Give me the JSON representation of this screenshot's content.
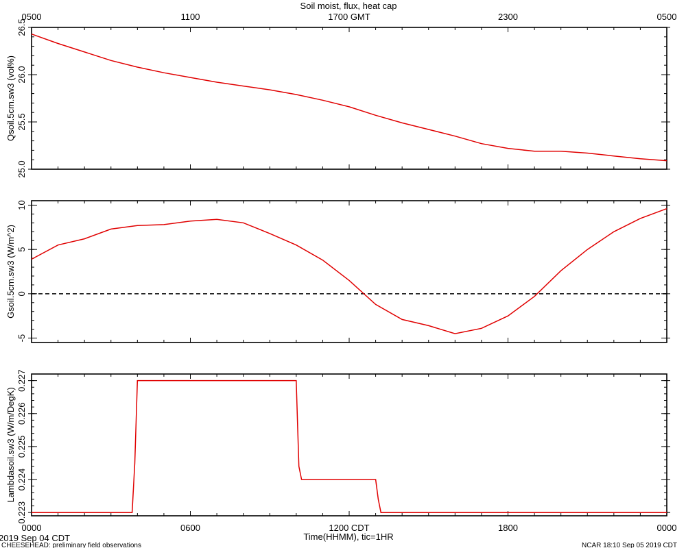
{
  "title": "Soil moist, flux, heat cap",
  "footer": {
    "left_date": "2019 Sep 04 CDT",
    "left_note": "CHEESEHEAD: preliminary field observations",
    "right_note": "NCAR 18:10 Sep 05 2019 CDT",
    "x_axis_title": "Time(HHMM), tic=1HR"
  },
  "chart_data": [
    {
      "type": "line",
      "ylabel": "Qsoil.5cm.sw3 (vol%)",
      "ylim": [
        25.0,
        26.5
      ],
      "yticks": [
        25.0,
        25.5,
        26.0,
        26.5
      ],
      "ytick_labels": [
        "25.0",
        "25.5",
        "26.0",
        "26.5"
      ],
      "top_axis_labels": [
        {
          "hour": 0,
          "label": "0500"
        },
        {
          "hour": 6,
          "label": "1100"
        },
        {
          "hour": 12,
          "label": "1700 GMT"
        },
        {
          "hour": 18,
          "label": "2300"
        },
        {
          "hour": 24,
          "label": "0500"
        }
      ],
      "xlim_hours": [
        0,
        24
      ],
      "line_color": "#e00000",
      "x": [
        0,
        1,
        2,
        3,
        4,
        5,
        6,
        7,
        8,
        9,
        10,
        11,
        12,
        13,
        14,
        15,
        16,
        17,
        18,
        19,
        20,
        21,
        22,
        23,
        24
      ],
      "y": [
        26.43,
        26.33,
        26.24,
        26.15,
        26.08,
        26.02,
        25.97,
        25.92,
        25.88,
        25.84,
        25.79,
        25.73,
        25.66,
        25.57,
        25.49,
        25.42,
        25.35,
        25.27,
        25.22,
        25.19,
        25.19,
        25.17,
        25.14,
        25.11,
        25.09
      ]
    },
    {
      "type": "line",
      "ylabel": "Gsoil.5cm.sw3 (W/m^2)",
      "ylim": [
        -5.5,
        10.5
      ],
      "yticks": [
        -5,
        0,
        5,
        10
      ],
      "ytick_labels": [
        "-5",
        "0",
        "5",
        "10"
      ],
      "zero_line": true,
      "xlim_hours": [
        0,
        24
      ],
      "line_color": "#e00000",
      "x": [
        0,
        1,
        2,
        3,
        4,
        5,
        6,
        7,
        8,
        9,
        10,
        11,
        12,
        13,
        14,
        15,
        16,
        17,
        18,
        19,
        20,
        21,
        22,
        23,
        24
      ],
      "y": [
        3.9,
        5.5,
        6.2,
        7.3,
        7.7,
        7.8,
        8.2,
        8.4,
        8.0,
        6.8,
        5.5,
        3.8,
        1.5,
        -1.2,
        -2.9,
        -3.6,
        -4.5,
        -3.9,
        -2.5,
        -0.3,
        2.6,
        5.0,
        7.0,
        8.5,
        9.6
      ]
    },
    {
      "type": "line",
      "ylabel": "Lambdasoil.sw3 (W/m/DegK)",
      "ylim": [
        0.2229,
        0.2272
      ],
      "yticks": [
        0.223,
        0.224,
        0.225,
        0.226,
        0.227
      ],
      "ytick_labels": [
        "0.223",
        "0.224",
        "0.225",
        "0.226",
        "0.227"
      ],
      "bottom_axis_labels": [
        {
          "hour": 0,
          "label": "0000"
        },
        {
          "hour": 6,
          "label": "0600"
        },
        {
          "hour": 12,
          "label": "1200 CDT"
        },
        {
          "hour": 18,
          "label": "1800"
        },
        {
          "hour": 24,
          "label": "0000"
        }
      ],
      "xlim_hours": [
        0,
        24
      ],
      "line_color": "#e00000",
      "x": [
        0,
        3.8,
        3.9,
        4.0,
        10.0,
        10.1,
        10.2,
        13.0,
        13.1,
        13.2,
        24
      ],
      "y": [
        0.223,
        0.223,
        0.2245,
        0.227,
        0.227,
        0.2244,
        0.224,
        0.224,
        0.2234,
        0.223,
        0.223
      ]
    }
  ]
}
